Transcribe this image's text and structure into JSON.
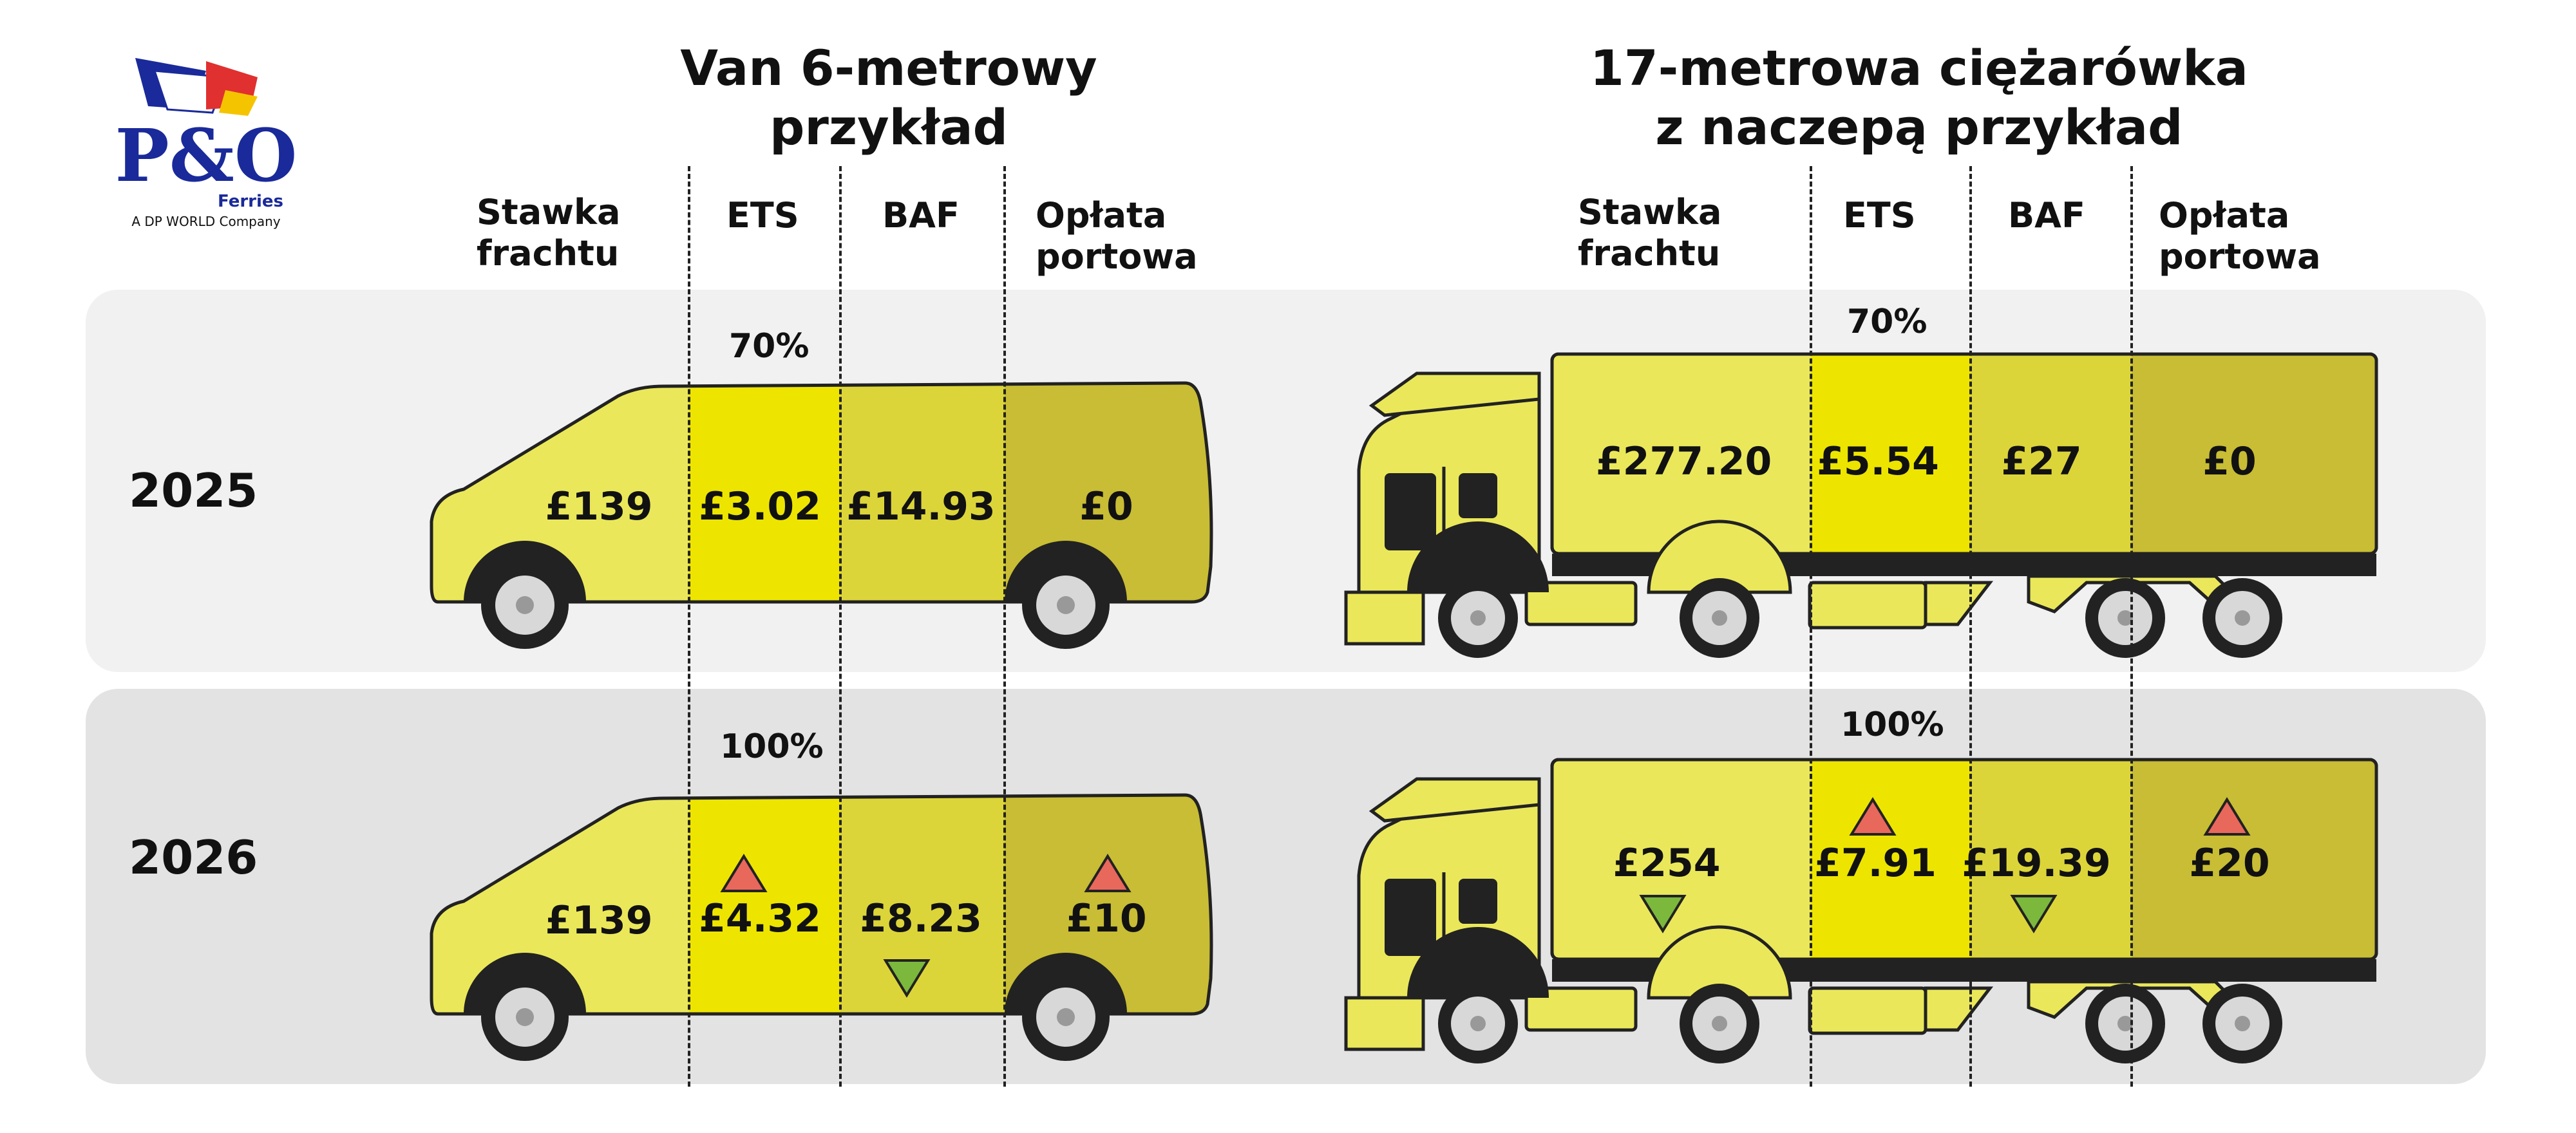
{
  "logo": {
    "mark": "P&O",
    "brand": "Ferries",
    "tagline": "A DP WORLD Company"
  },
  "headings": {
    "van": [
      "Van 6-metrowy",
      "przykład"
    ],
    "truck": [
      "17-metrowa ciężarówka",
      "z naczepą przykład"
    ]
  },
  "columns": {
    "freight": [
      "Stawka",
      "frachtu"
    ],
    "ets": "ETS",
    "baf": "BAF",
    "port": [
      "Opłata",
      "portowa"
    ]
  },
  "rows": [
    {
      "year": "2025",
      "ets_percent": "70%",
      "van": {
        "freight": "£139",
        "ets": "£3.02",
        "baf": "£14.93",
        "port": "£0"
      },
      "truck": {
        "freight": "£277.20",
        "ets": "£5.54",
        "baf": "£27",
        "port": "£0"
      }
    },
    {
      "year": "2026",
      "ets_percent": "100%",
      "van": {
        "freight": "£139",
        "ets": "£4.32",
        "baf": "£8.23",
        "port": "£10",
        "trends": {
          "ets": "up",
          "baf": "down",
          "port": "up"
        }
      },
      "truck": {
        "freight": "£254",
        "ets": "£7.91",
        "baf": "£19.39",
        "port": "£20",
        "trends": {
          "freight": "down",
          "ets": "up",
          "baf": "down",
          "port": "up"
        }
      }
    }
  ],
  "colors": {
    "row2025": "#f1f1f1",
    "row2026": "#e3e3e3",
    "freight": "#eae85a",
    "ets": "#ede500",
    "baf": "#dcd53a",
    "port": "#c8bd34",
    "up": "#e9685c",
    "down": "#7cb83c",
    "brand": "#1a2a9a"
  }
}
